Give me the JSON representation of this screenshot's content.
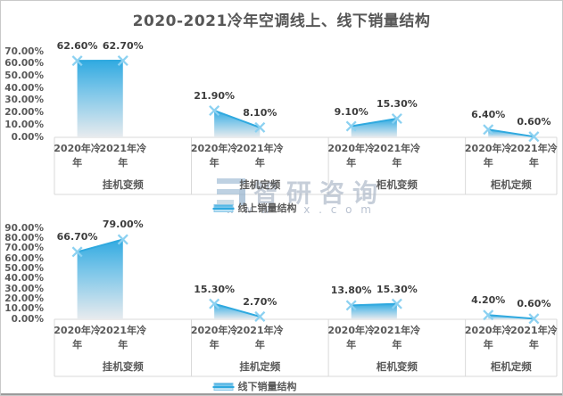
{
  "page": {
    "title": "2020-2021冷年空调线上、线下销量结构"
  },
  "watermark": {
    "brand_text": "智研咨询",
    "url_left": "w w w",
    "url_right": "x . c o m"
  },
  "colors": {
    "area_top": "#31aae1",
    "area_mid": "#7cc6e9",
    "area_bottom": "#e8ebee",
    "edge_line": "#2fa9df",
    "marker": "#8cd1f1",
    "axis_line": "#d9d9d9",
    "axis_text": "#595959",
    "data_label_text": "#3d3d3d",
    "title_text": "#575757"
  },
  "chart_data": [
    {
      "type": "area",
      "series_name": "线上销量结构",
      "legend_position": "bottom",
      "grid": false,
      "ylim": [
        0,
        70
      ],
      "ytick_labels": [
        "0.00%",
        "10.00%",
        "20.00%",
        "30.00%",
        "40.00%",
        "50.00%",
        "60.00%",
        "70.00%"
      ],
      "x_year_labels": [
        "2020年冷年",
        "2021年冷年"
      ],
      "groups": [
        {
          "category": "挂机变频",
          "values": [
            62.6,
            62.7
          ],
          "labels": [
            "62.60%",
            "62.70%"
          ]
        },
        {
          "category": "挂机定频",
          "values": [
            21.9,
            8.1
          ],
          "labels": [
            "21.90%",
            "8.10%"
          ]
        },
        {
          "category": "柜机变频",
          "values": [
            9.1,
            15.3
          ],
          "labels": [
            "9.10%",
            "15.30%"
          ]
        },
        {
          "category": "柜机定频",
          "values": [
            6.4,
            0.6
          ],
          "labels": [
            "6.40%",
            "0.60%"
          ]
        }
      ]
    },
    {
      "type": "area",
      "series_name": "线下销量结构",
      "legend_position": "bottom",
      "grid": false,
      "ylim": [
        0,
        90
      ],
      "ytick_labels": [
        "0.00%",
        "10.00%",
        "20.00%",
        "30.00%",
        "40.00%",
        "50.00%",
        "60.00%",
        "70.00%",
        "80.00%",
        "90.00%"
      ],
      "x_year_labels": [
        "2020年冷年",
        "2021年冷年"
      ],
      "groups": [
        {
          "category": "挂机变频",
          "values": [
            66.7,
            79.0
          ],
          "labels": [
            "66.70%",
            "79.00%"
          ]
        },
        {
          "category": "挂机定频",
          "values": [
            15.3,
            2.7
          ],
          "labels": [
            "15.30%",
            "2.70%"
          ]
        },
        {
          "category": "柜机变频",
          "values": [
            13.8,
            15.3
          ],
          "labels": [
            "13.80%",
            "15.30%"
          ]
        },
        {
          "category": "柜机定频",
          "values": [
            4.2,
            0.6
          ],
          "labels": [
            "4.20%",
            "0.60%"
          ]
        }
      ]
    }
  ]
}
